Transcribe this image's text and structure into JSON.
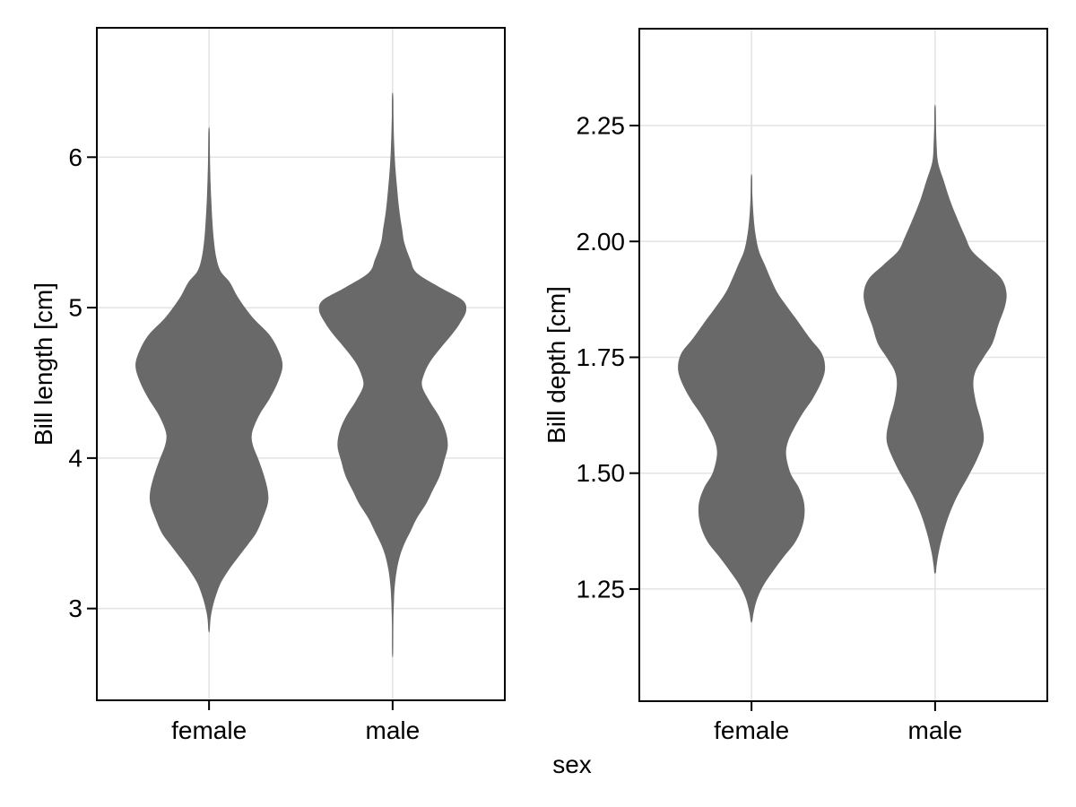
{
  "xlabel": "sex",
  "style": {
    "background": "#ffffff",
    "violin_fill": "#696969",
    "grid_color": "#e3e3e3",
    "axis_color": "#000000",
    "text_color": "#000000"
  },
  "chart_data": [
    {
      "type": "violin",
      "ylabel": "Bill length [cm]",
      "categories": [
        "female",
        "male"
      ],
      "ylim": [
        2.39,
        6.86
      ],
      "grid": true,
      "y_ticks": [
        {
          "v": 6,
          "label": "6"
        },
        {
          "v": 5,
          "label": "5"
        },
        {
          "v": 4,
          "label": "4"
        },
        {
          "v": 3,
          "label": "3"
        }
      ],
      "violins": [
        {
          "category": "female",
          "profile": [
            [
              6.18,
              0.008
            ],
            [
              6.02,
              0.012
            ],
            [
              5.88,
              0.018
            ],
            [
              5.72,
              0.03
            ],
            [
              5.58,
              0.045
            ],
            [
              5.45,
              0.065
            ],
            [
              5.33,
              0.1
            ],
            [
              5.24,
              0.16
            ],
            [
              5.17,
              0.28
            ],
            [
              5.08,
              0.38
            ],
            [
              5.0,
              0.49
            ],
            [
              4.92,
              0.62
            ],
            [
              4.82,
              0.82
            ],
            [
              4.72,
              0.94
            ],
            [
              4.62,
              1.0
            ],
            [
              4.52,
              0.95
            ],
            [
              4.4,
              0.83
            ],
            [
              4.3,
              0.7
            ],
            [
              4.22,
              0.62
            ],
            [
              4.15,
              0.58
            ],
            [
              4.08,
              0.6
            ],
            [
              3.98,
              0.68
            ],
            [
              3.88,
              0.75
            ],
            [
              3.78,
              0.8
            ],
            [
              3.7,
              0.8
            ],
            [
              3.6,
              0.73
            ],
            [
              3.5,
              0.64
            ],
            [
              3.42,
              0.52
            ],
            [
              3.33,
              0.38
            ],
            [
              3.25,
              0.26
            ],
            [
              3.17,
              0.16
            ],
            [
              3.08,
              0.09
            ],
            [
              3.0,
              0.045
            ],
            [
              2.93,
              0.02
            ],
            [
              2.85,
              0.008
            ]
          ]
        },
        {
          "category": "male",
          "profile": [
            [
              6.41,
              0.008
            ],
            [
              6.25,
              0.012
            ],
            [
              6.1,
              0.02
            ],
            [
              5.95,
              0.035
            ],
            [
              5.8,
              0.06
            ],
            [
              5.65,
              0.09
            ],
            [
              5.52,
              0.13
            ],
            [
              5.43,
              0.16
            ],
            [
              5.32,
              0.24
            ],
            [
              5.23,
              0.33
            ],
            [
              5.13,
              0.66
            ],
            [
              5.05,
              0.95
            ],
            [
              4.98,
              1.0
            ],
            [
              4.9,
              0.92
            ],
            [
              4.83,
              0.82
            ],
            [
              4.73,
              0.65
            ],
            [
              4.64,
              0.51
            ],
            [
              4.56,
              0.43
            ],
            [
              4.48,
              0.4
            ],
            [
              4.38,
              0.5
            ],
            [
              4.28,
              0.63
            ],
            [
              4.18,
              0.72
            ],
            [
              4.08,
              0.75
            ],
            [
              3.98,
              0.7
            ],
            [
              3.88,
              0.64
            ],
            [
              3.78,
              0.54
            ],
            [
              3.7,
              0.46
            ],
            [
              3.6,
              0.33
            ],
            [
              3.51,
              0.24
            ],
            [
              3.43,
              0.16
            ],
            [
              3.35,
              0.1
            ],
            [
              3.25,
              0.055
            ],
            [
              3.15,
              0.03
            ],
            [
              3.05,
              0.018
            ],
            [
              2.9,
              0.01
            ],
            [
              2.7,
              0.007
            ]
          ]
        }
      ]
    },
    {
      "type": "violin",
      "ylabel": "Bill depth [cm]",
      "categories": [
        "female",
        "male"
      ],
      "ylim": [
        1.008,
        2.459
      ],
      "grid": true,
      "y_ticks": [
        {
          "v": 2.25,
          "label": "2.25"
        },
        {
          "v": 2.0,
          "label": "2.00"
        },
        {
          "v": 1.75,
          "label": "1.75"
        },
        {
          "v": 1.5,
          "label": "1.50"
        },
        {
          "v": 1.25,
          "label": "1.25"
        }
      ],
      "violins": [
        {
          "category": "female",
          "profile": [
            [
              2.14,
              0.008
            ],
            [
              2.1,
              0.012
            ],
            [
              2.06,
              0.025
            ],
            [
              2.02,
              0.05
            ],
            [
              1.98,
              0.1
            ],
            [
              1.95,
              0.18
            ],
            [
              1.92,
              0.26
            ],
            [
              1.89,
              0.35
            ],
            [
              1.86,
              0.48
            ],
            [
              1.83,
              0.62
            ],
            [
              1.79,
              0.8
            ],
            [
              1.76,
              0.95
            ],
            [
              1.73,
              1.0
            ],
            [
              1.7,
              0.96
            ],
            [
              1.66,
              0.83
            ],
            [
              1.63,
              0.7
            ],
            [
              1.6,
              0.59
            ],
            [
              1.57,
              0.5
            ],
            [
              1.54,
              0.47
            ],
            [
              1.5,
              0.53
            ],
            [
              1.47,
              0.64
            ],
            [
              1.44,
              0.71
            ],
            [
              1.41,
              0.72
            ],
            [
              1.38,
              0.68
            ],
            [
              1.35,
              0.59
            ],
            [
              1.32,
              0.44
            ],
            [
              1.29,
              0.3
            ],
            [
              1.26,
              0.17
            ],
            [
              1.23,
              0.08
            ],
            [
              1.2,
              0.03
            ],
            [
              1.18,
              0.01
            ]
          ]
        },
        {
          "category": "male",
          "profile": [
            [
              2.29,
              0.008
            ],
            [
              2.25,
              0.012
            ],
            [
              2.21,
              0.02
            ],
            [
              2.17,
              0.04
            ],
            [
              2.13,
              0.12
            ],
            [
              2.09,
              0.2
            ],
            [
              2.05,
              0.3
            ],
            [
              2.01,
              0.41
            ],
            [
              1.98,
              0.5
            ],
            [
              1.95,
              0.7
            ],
            [
              1.92,
              0.9
            ],
            [
              1.89,
              0.97
            ],
            [
              1.86,
              0.95
            ],
            [
              1.82,
              0.86
            ],
            [
              1.78,
              0.78
            ],
            [
              1.75,
              0.66
            ],
            [
              1.72,
              0.55
            ],
            [
              1.69,
              0.52
            ],
            [
              1.65,
              0.56
            ],
            [
              1.61,
              0.63
            ],
            [
              1.57,
              0.66
            ],
            [
              1.53,
              0.57
            ],
            [
              1.49,
              0.44
            ],
            [
              1.45,
              0.3
            ],
            [
              1.41,
              0.19
            ],
            [
              1.37,
              0.11
            ],
            [
              1.33,
              0.05
            ],
            [
              1.3,
              0.02
            ],
            [
              1.285,
              0.01
            ]
          ]
        }
      ]
    }
  ]
}
